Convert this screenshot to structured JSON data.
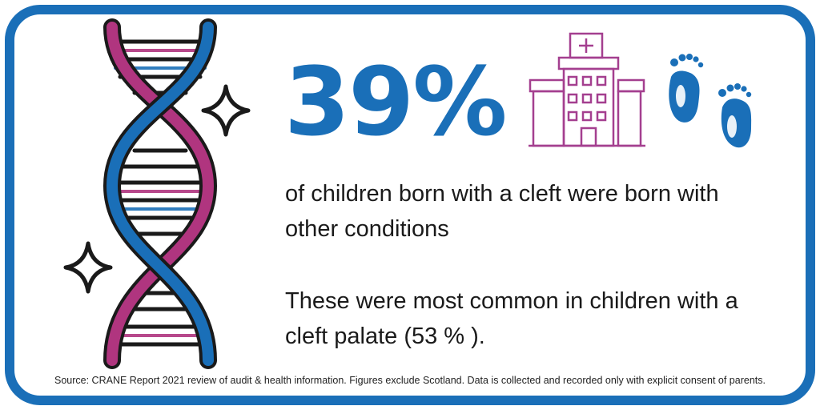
{
  "stat": {
    "value": "39%"
  },
  "text": {
    "line1": "of children born with a cleft were born with other conditions",
    "line2": "These were most common in children with a cleft palate (53 % )."
  },
  "source": "Source: CRANE Report 2021 review of audit & health information. Figures exclude Scotland. Data is collected and recorded only with explicit consent of parents.",
  "icons": [
    "dna-icon",
    "sparkle-icon",
    "hospital-icon",
    "baby-feet-icon"
  ],
  "colors": {
    "blue": "#1a6fb8",
    "magenta": "#b0357f",
    "purple_outline": "#a43f8f",
    "dark": "#1a1a1a"
  }
}
